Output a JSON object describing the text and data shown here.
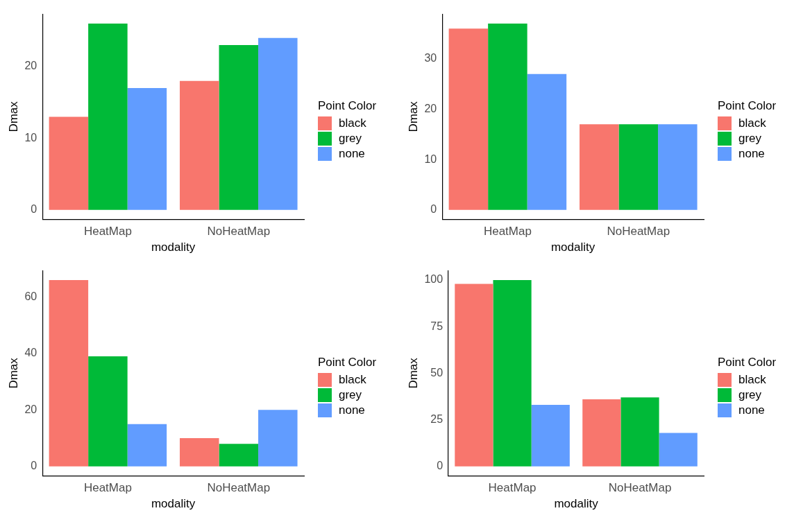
{
  "chart_data": [
    {
      "type": "bar",
      "categories": [
        "HeatMap",
        "NoHeatMap"
      ],
      "xlabel": "modality",
      "ylabel": "Dmax",
      "legend_title": "Point Color",
      "legend": "right",
      "grid": false,
      "ylim": [
        -1.3,
        27.3
      ],
      "yticks": [
        0,
        10,
        20
      ],
      "series": [
        {
          "name": "black",
          "color": "#f8766d",
          "values": [
            13,
            18
          ]
        },
        {
          "name": "grey",
          "color": "#00ba38",
          "values": [
            26,
            23
          ]
        },
        {
          "name": "none",
          "color": "#619cff",
          "values": [
            17,
            24
          ]
        }
      ]
    },
    {
      "type": "bar",
      "categories": [
        "HeatMap",
        "NoHeatMap"
      ],
      "xlabel": "modality",
      "ylabel": "Dmax",
      "legend_title": "Point Color",
      "legend": "right",
      "grid": false,
      "ylim": [
        -1.85,
        38.85
      ],
      "yticks": [
        0,
        10,
        20,
        30
      ],
      "series": [
        {
          "name": "black",
          "color": "#f8766d",
          "values": [
            36,
            17
          ]
        },
        {
          "name": "grey",
          "color": "#00ba38",
          "values": [
            37,
            17
          ]
        },
        {
          "name": "none",
          "color": "#619cff",
          "values": [
            27,
            17
          ]
        }
      ]
    },
    {
      "type": "bar",
      "categories": [
        "HeatMap",
        "NoHeatMap"
      ],
      "xlabel": "modality",
      "ylabel": "Dmax",
      "legend_title": "Point Color",
      "legend": "right",
      "grid": false,
      "ylim": [
        -3.3,
        69.3
      ],
      "yticks": [
        0,
        20,
        40,
        60
      ],
      "series": [
        {
          "name": "black",
          "color": "#f8766d",
          "values": [
            66,
            10
          ]
        },
        {
          "name": "grey",
          "color": "#00ba38",
          "values": [
            39,
            8
          ]
        },
        {
          "name": "none",
          "color": "#619cff",
          "values": [
            15,
            20
          ]
        }
      ]
    },
    {
      "type": "bar",
      "categories": [
        "HeatMap",
        "NoHeatMap"
      ],
      "xlabel": "modality",
      "ylabel": "Dmax",
      "legend_title": "Point Color",
      "legend": "right",
      "grid": false,
      "ylim": [
        -5,
        105
      ],
      "yticks": [
        0,
        25,
        50,
        75,
        100
      ],
      "series": [
        {
          "name": "black",
          "color": "#f8766d",
          "values": [
            98,
            36
          ]
        },
        {
          "name": "grey",
          "color": "#00ba38",
          "values": [
            100,
            37
          ]
        },
        {
          "name": "none",
          "color": "#619cff",
          "values": [
            33,
            18
          ]
        }
      ]
    }
  ]
}
